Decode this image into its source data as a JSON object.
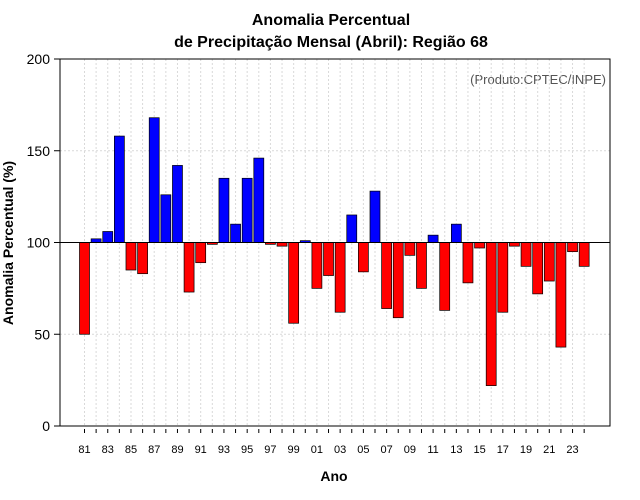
{
  "chart_data": {
    "type": "bar",
    "title_line1": "Anomalia Percentual",
    "title_line2": "de Precipitação Mensal (Abril): Região 68",
    "xlabel": "Ano",
    "ylabel": "Anomalia Percentual (%)",
    "annotation": "(Produto:CPTEC/INPE)",
    "ylim": [
      0,
      200
    ],
    "yticks": [
      "0",
      "50",
      "100",
      "150",
      "200"
    ],
    "baseline": 100,
    "grid": true,
    "colors": {
      "above": "#0000ff",
      "below": "#ff0000",
      "baseline": "#000000",
      "grid": "#d9d9d9"
    },
    "years": [
      1981,
      1982,
      1983,
      1984,
      1985,
      1986,
      1987,
      1988,
      1989,
      1990,
      1991,
      1992,
      1993,
      1994,
      1995,
      1996,
      1997,
      1998,
      1999,
      2000,
      2001,
      2002,
      2003,
      2004,
      2005,
      2006,
      2007,
      2008,
      2009,
      2010,
      2011,
      2012,
      2013,
      2014,
      2015,
      2016,
      2017,
      2018,
      2019,
      2020,
      2021,
      2022,
      2023,
      2024
    ],
    "xtick_labels": [
      "81",
      "83",
      "85",
      "87",
      "89",
      "91",
      "93",
      "95",
      "97",
      "99",
      "01",
      "03",
      "05",
      "07",
      "09",
      "11",
      "13",
      "15",
      "17",
      "19",
      "21",
      "23"
    ],
    "values": [
      50,
      102,
      106,
      158,
      85,
      83,
      168,
      126,
      142,
      73,
      89,
      99,
      135,
      110,
      135,
      146,
      99,
      98,
      56,
      101,
      75,
      82,
      62,
      115,
      84,
      128,
      64,
      59,
      93,
      75,
      104,
      63,
      110,
      78,
      97,
      22,
      62,
      98,
      87,
      72,
      79,
      43,
      95,
      87
    ]
  }
}
